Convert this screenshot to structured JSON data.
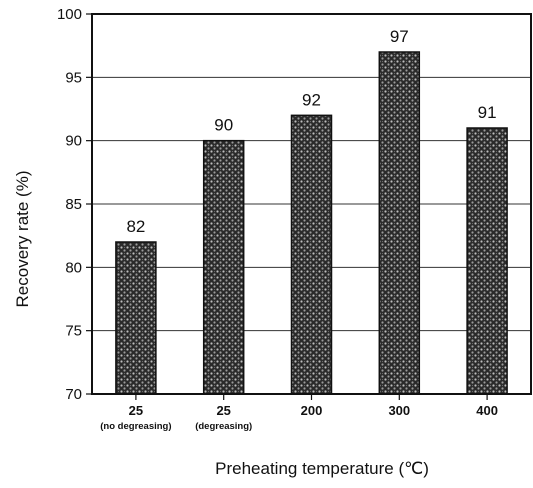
{
  "chart_data": {
    "type": "bar",
    "categories": [
      "25",
      "25",
      "200",
      "300",
      "400"
    ],
    "category_sublabels": [
      "(no degreasing)",
      "(degreasing)",
      "",
      "",
      ""
    ],
    "values": [
      82,
      90,
      92,
      97,
      91
    ],
    "data_labels": [
      "82",
      "90",
      "92",
      "97",
      "91"
    ],
    "xlabel": "Preheating temperature (℃)",
    "ylabel": "Recovery rate (%)",
    "ylim": [
      70,
      100
    ],
    "yticks": [
      70,
      75,
      80,
      85,
      90,
      95,
      100
    ],
    "ytick_labels": [
      "70",
      "75",
      "80",
      "85",
      "90",
      "95",
      "100"
    ],
    "grid": "horizontal",
    "bar_color": "#5a5a5a"
  }
}
